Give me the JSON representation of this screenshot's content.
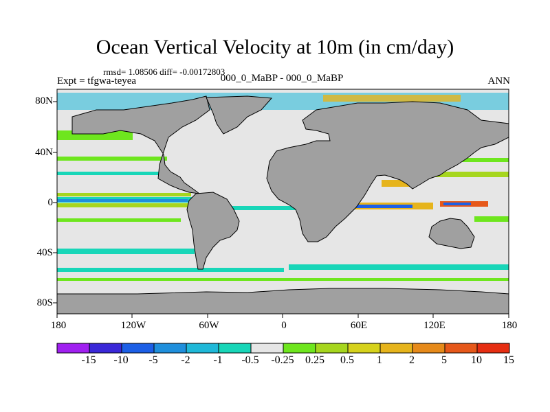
{
  "title": "Ocean Vertical Velocity at 10m (in cm/day)",
  "stats": "rmsd= 1.08506 diff= -0.00172803",
  "left_label": "Expt = tfgwa-teyea",
  "center_label": "000_0_MaBP - 000_0_MaBP",
  "right_label": "ANN",
  "axes": {
    "x_ticks": [
      "180",
      "120W",
      "60W",
      "0",
      "60E",
      "120E",
      "180"
    ],
    "y_ticks": [
      "80N",
      "40N",
      "0",
      "40S",
      "80S"
    ]
  },
  "colorbar": {
    "labels": [
      "-15",
      "-10",
      "-5",
      "-2",
      "-1",
      "-0.5",
      "-0.25",
      "0.25",
      "0.5",
      "1",
      "2",
      "5",
      "10",
      "15"
    ],
    "colors": [
      "#a020f0",
      "#3a28d8",
      "#1c5fe6",
      "#1f8fdc",
      "#1fb8d8",
      "#18d6b8",
      "#e6e6e6",
      "#6ee61e",
      "#a6d61e",
      "#d6d21c",
      "#e6b41c",
      "#e68a1a",
      "#e6581a",
      "#e62e12"
    ]
  },
  "colors": {
    "land": "#a0a0a0",
    "neutral": "#e6e6e6"
  }
}
